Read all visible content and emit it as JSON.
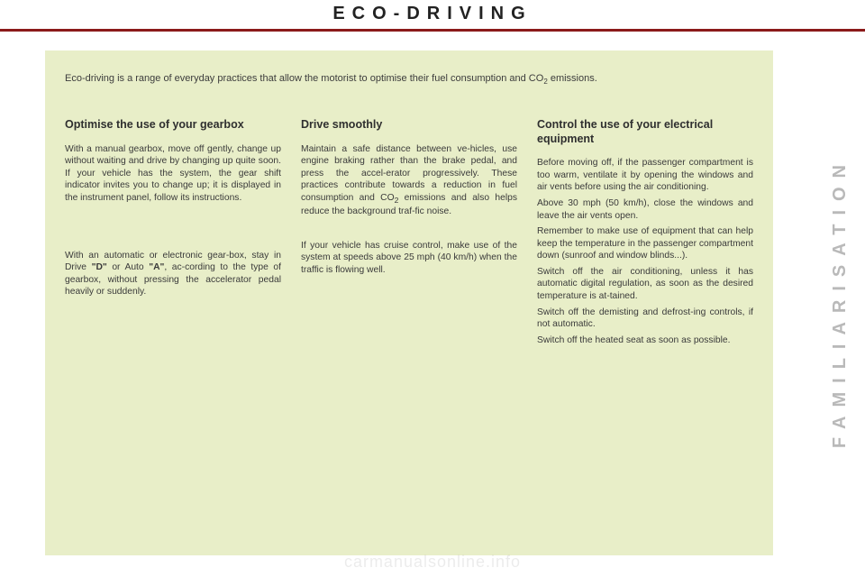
{
  "page": {
    "title": "ECO-DRIVING",
    "side_label": "FAMILIARISATION",
    "watermark": "carmanualsonline.info",
    "colors": {
      "accent_red": "#8b1a1a",
      "panel_bg": "#e8eec8",
      "side_label_color": "#b9b9b9",
      "text_color": "#3c3c3c"
    }
  },
  "intro": {
    "pre": "Eco-driving is a range of everyday practices that allow the motorist to optimise their fuel consumption and CO",
    "sub": "2",
    "post": " emissions."
  },
  "columns": {
    "left": {
      "heading": "Optimise the use of your gearbox",
      "p1": "With a manual gearbox, move off gently, change up without waiting and drive by changing up quite soon. If your vehicle has the system, the gear shift indicator invites you to change up; it is displayed in the instrument panel, follow its instructions.",
      "p2_a": "With an automatic or electronic gear-box, stay in Drive ",
      "p2_b": "\"D\"",
      "p2_c": " or Auto ",
      "p2_d": "\"A\"",
      "p2_e": ", ac-cording to the type of gearbox, without pressing the accelerator pedal heavily or suddenly."
    },
    "middle": {
      "heading": "Drive smoothly",
      "p1_a": "Maintain a safe distance between ve-hicles, use engine braking rather than the brake pedal, and press the accel-erator progressively. These practices contribute towards a reduction in fuel consumption and CO",
      "p1_sub": "2",
      "p1_b": " emissions and also helps reduce the background traf-fic noise.",
      "p2": "If your vehicle has cruise control, make use of the system at speeds above 25 mph (40 km/h) when the traffic is flowing well."
    },
    "right": {
      "heading": "Control the use of your electrical equipment",
      "p1": "Before moving off, if the passenger compartment is too warm, ventilate it by opening the windows and air vents before using the air conditioning.",
      "p2": "Above 30 mph (50 km/h), close the windows and leave the air vents open.",
      "p3": "Remember to make use of equipment that can help keep the temperature in the passenger compartment down (sunroof and window blinds...).",
      "p4": "Switch off the air conditioning, unless it has automatic digital regulation, as soon as the desired temperature is at-tained.",
      "p5": "Switch off the demisting and defrost-ing controls, if not automatic.",
      "p6": "Switch off the heated seat as soon as possible."
    }
  }
}
